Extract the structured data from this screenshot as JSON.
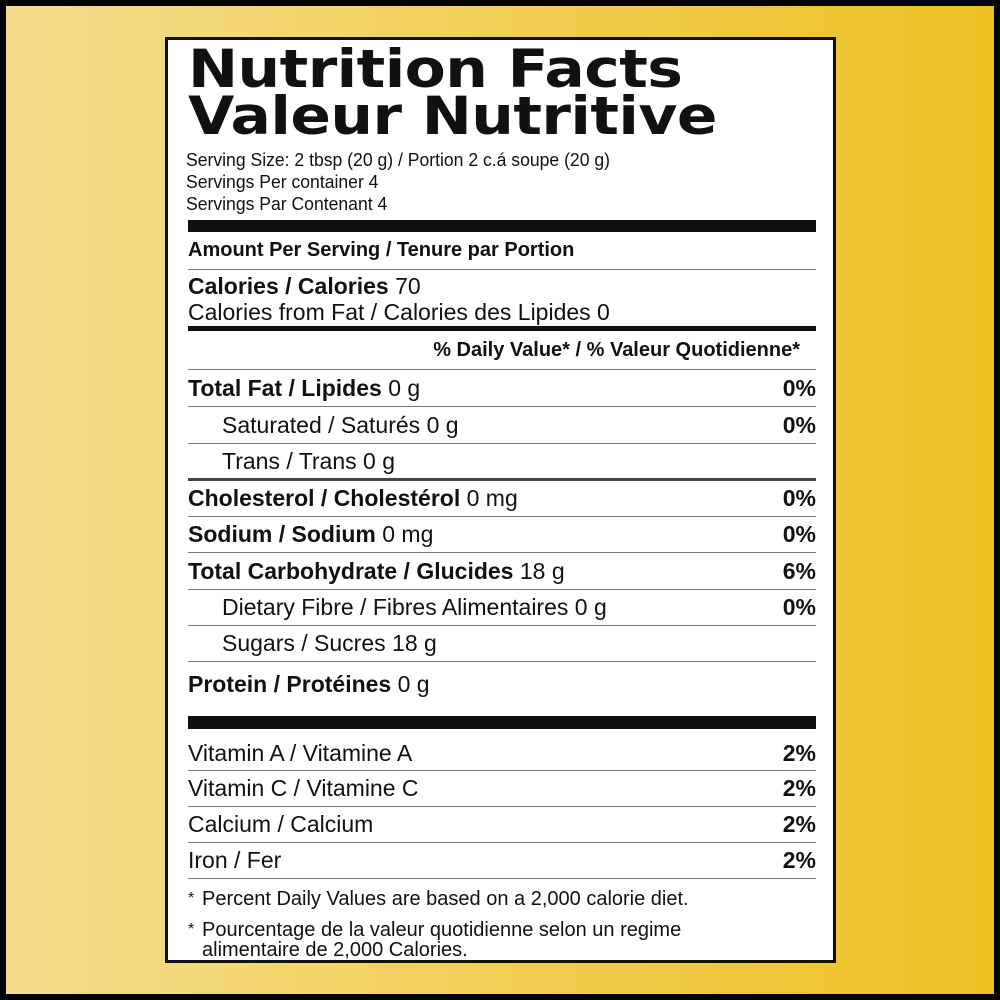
{
  "title": {
    "line1": "Nutrition Facts",
    "line2": "Valeur Nutritive"
  },
  "serving": {
    "size": "Serving Size: 2 tbsp (20 g) / Portion 2 c.á soupe (20 g)",
    "per_container": "Servings Per container  4",
    "par_contenant": "Servings Par Contenant  4"
  },
  "amount_header": "Amount Per Serving / Tenure par Portion",
  "calories": {
    "label": "Calories / Calories",
    "value": "70",
    "from_fat": "Calories from Fat / Calories des Lipides 0"
  },
  "dv_header": "% Daily Value* / % Valeur Quotidienne*",
  "nutrients": [
    {
      "label": "Total Fat / Lipides",
      "amount": "0 g",
      "dv": "0%"
    },
    {
      "label": "Saturated / Saturés",
      "amount": "0 g",
      "dv": "0%"
    },
    {
      "label": "Trans / Trans",
      "amount": "0 g",
      "dv": ""
    },
    {
      "label": "Cholesterol / Cholestérol",
      "amount": "0 mg",
      "dv": "0%"
    },
    {
      "label": "Sodium / Sodium",
      "amount": "0 mg",
      "dv": "0%"
    },
    {
      "label": "Total Carbohydrate / Glucides",
      "amount": "18 g",
      "dv": "6%"
    },
    {
      "label": "Dietary Fibre / Fibres Alimentaires",
      "amount": "0 g",
      "dv": "0%"
    },
    {
      "label": "Sugars / Sucres",
      "amount": "18 g",
      "dv": ""
    },
    {
      "label": "Protein / Protéines",
      "amount": "0 g",
      "dv": ""
    }
  ],
  "vitamins": [
    {
      "label": "Vitamin A / Vitamine A",
      "dv": "2%"
    },
    {
      "label": "Vitamin C / Vitamine C",
      "dv": "2%"
    },
    {
      "label": "Calcium / Calcium",
      "dv": "2%"
    },
    {
      "label": "Iron / Fer",
      "dv": "2%"
    }
  ],
  "footnotes": {
    "star": "*",
    "en": "Percent Daily Values are based on a 2,000 calorie diet.",
    "fr1": "Pourcentage de la valeur quotidienne selon un regime",
    "fr2": "alimentaire de 2,000 Calories."
  }
}
